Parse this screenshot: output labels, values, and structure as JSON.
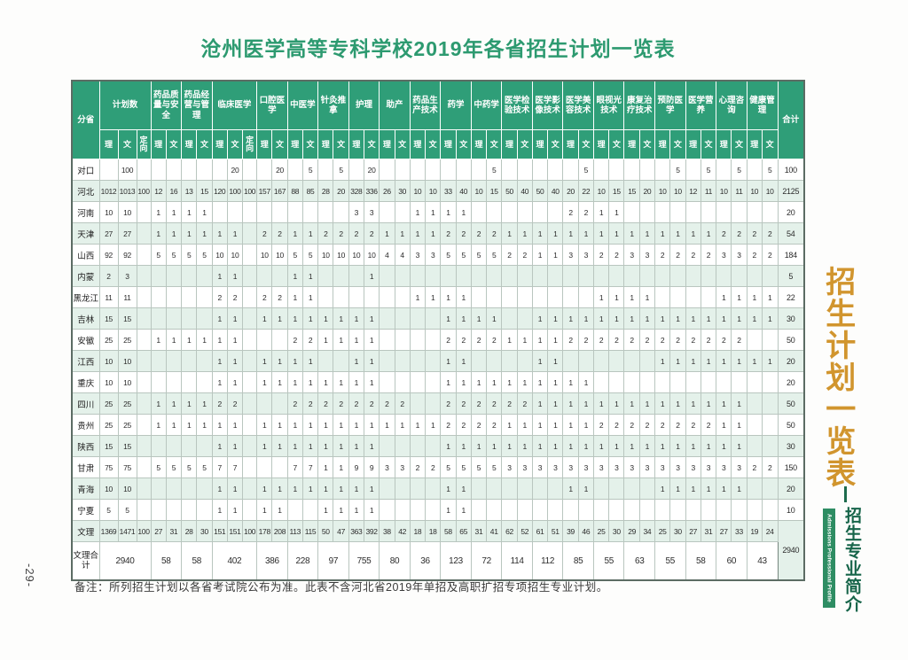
{
  "page": {
    "number": "-29-"
  },
  "title": "沧州医学高等专科学校2019年各省招生计划一览表",
  "note": "备注：所列招生计划以各省考试院公布为准。此表不含河北省2019年单招及高职扩招专项招生专业计划。",
  "sidebar": {
    "calligraphy": "招生计划一览表",
    "section_label": "招生专业简介",
    "section_label_en": "Admissions Professional Profile"
  },
  "colors": {
    "header_green": "#2f9e78",
    "row_tint": "#e4f1ea",
    "title_green": "#2d9a70",
    "calligraphy_orange": "#d1952e",
    "side_dark_green": "#17654a",
    "badge_green": "#2e8d63"
  },
  "table": {
    "corner_label": "分省",
    "total_label": "合计",
    "grand_row_label": "文理",
    "grand_total": "2940",
    "groups": [
      {
        "name": "计划数",
        "cols": [
          "理",
          "文",
          "定向"
        ]
      },
      {
        "name": "药品质量与安全",
        "cols": [
          "理",
          "文"
        ]
      },
      {
        "name": "药品经营与管理",
        "cols": [
          "理",
          "文"
        ]
      },
      {
        "name": "临床医学",
        "cols": [
          "理",
          "文",
          "定向"
        ]
      },
      {
        "name": "口腔医学",
        "cols": [
          "理",
          "文"
        ]
      },
      {
        "name": "中医学",
        "cols": [
          "理",
          "文"
        ]
      },
      {
        "name": "针灸推拿",
        "cols": [
          "理",
          "文"
        ]
      },
      {
        "name": "护理",
        "cols": [
          "理",
          "文"
        ]
      },
      {
        "name": "助产",
        "cols": [
          "理",
          "文"
        ]
      },
      {
        "name": "药品生产技术",
        "cols": [
          "理",
          "文"
        ]
      },
      {
        "name": "药学",
        "cols": [
          "理",
          "文"
        ]
      },
      {
        "name": "中药学",
        "cols": [
          "理",
          "文"
        ]
      },
      {
        "name": "医学检验技术",
        "cols": [
          "理",
          "文"
        ]
      },
      {
        "name": "医学影像技术",
        "cols": [
          "理",
          "文"
        ]
      },
      {
        "name": "医学美容技术",
        "cols": [
          "理",
          "文"
        ]
      },
      {
        "name": "眼视光技术",
        "cols": [
          "理",
          "文"
        ]
      },
      {
        "name": "康复治疗技术",
        "cols": [
          "理",
          "文"
        ]
      },
      {
        "name": "预防医学",
        "cols": [
          "理",
          "文"
        ]
      },
      {
        "name": "医学营养",
        "cols": [
          "理",
          "文"
        ]
      },
      {
        "name": "心理咨询",
        "cols": [
          "理",
          "文"
        ]
      },
      {
        "name": "健康管理",
        "cols": [
          "理",
          "文"
        ]
      }
    ],
    "rows": [
      {
        "label": "对口",
        "cells": [
          "",
          "100",
          "",
          "",
          "",
          "",
          "",
          "",
          "20",
          "",
          "",
          "20",
          "",
          "5",
          "",
          "5",
          "",
          "20",
          "",
          "",
          "",
          "",
          "",
          "",
          "",
          "5",
          "",
          "",
          "",
          "",
          "",
          "5",
          "",
          "",
          "",
          "",
          "",
          "5",
          "",
          "5",
          "",
          "5",
          "",
          "5"
        ],
        "total": "100"
      },
      {
        "label": "河北",
        "cells": [
          "1012",
          "1013",
          "100",
          "12",
          "16",
          "13",
          "15",
          "120",
          "100",
          "100",
          "157",
          "167",
          "88",
          "85",
          "28",
          "20",
          "328",
          "336",
          "26",
          "30",
          "10",
          "10",
          "33",
          "40",
          "10",
          "15",
          "50",
          "40",
          "50",
          "40",
          "20",
          "22",
          "10",
          "15",
          "15",
          "20",
          "10",
          "10",
          "12",
          "11",
          "10",
          "11",
          "10",
          "10"
        ],
        "total": "2125"
      },
      {
        "label": "河南",
        "cells": [
          "10",
          "10",
          "",
          "1",
          "1",
          "1",
          "1",
          "",
          "",
          "",
          "",
          "",
          "",
          "",
          "",
          "",
          "3",
          "3",
          "",
          "",
          "1",
          "1",
          "1",
          "1",
          "",
          "",
          "",
          "",
          "",
          "",
          "2",
          "2",
          "1",
          "1",
          "",
          "",
          "",
          "",
          "",
          "",
          "",
          "",
          "",
          ""
        ],
        "total": "20"
      },
      {
        "label": "天津",
        "cells": [
          "27",
          "27",
          "",
          "1",
          "1",
          "1",
          "1",
          "1",
          "1",
          "",
          "2",
          "2",
          "1",
          "1",
          "2",
          "2",
          "2",
          "2",
          "1",
          "1",
          "1",
          "1",
          "2",
          "2",
          "2",
          "2",
          "1",
          "1",
          "1",
          "1",
          "1",
          "1",
          "1",
          "1",
          "1",
          "1",
          "1",
          "1",
          "1",
          "1",
          "2",
          "2",
          "2",
          "2"
        ],
        "total": "54"
      },
      {
        "label": "山西",
        "cells": [
          "92",
          "92",
          "",
          "5",
          "5",
          "5",
          "5",
          "10",
          "10",
          "",
          "10",
          "10",
          "5",
          "5",
          "10",
          "10",
          "10",
          "10",
          "4",
          "4",
          "3",
          "3",
          "5",
          "5",
          "5",
          "5",
          "2",
          "2",
          "1",
          "1",
          "3",
          "3",
          "2",
          "2",
          "3",
          "3",
          "2",
          "2",
          "2",
          "2",
          "3",
          "3",
          "2",
          "2"
        ],
        "total": "184"
      },
      {
        "label": "内蒙",
        "cells": [
          "2",
          "3",
          "",
          "",
          "",
          "",
          "",
          "1",
          "1",
          "",
          "",
          "",
          "1",
          "1",
          "",
          "",
          "",
          "1",
          "",
          "",
          "",
          "",
          "",
          "",
          "",
          "",
          "",
          "",
          "",
          "",
          "",
          "",
          "",
          "",
          "",
          "",
          "",
          "",
          "",
          "",
          "",
          "",
          "",
          ""
        ],
        "total": "5"
      },
      {
        "label": "黑龙江",
        "cells": [
          "11",
          "11",
          "",
          "",
          "",
          "",
          "",
          "2",
          "2",
          "",
          "2",
          "2",
          "1",
          "1",
          "",
          "",
          "",
          "",
          "",
          "",
          "1",
          "1",
          "1",
          "1",
          "",
          "",
          "",
          "",
          "",
          "",
          "",
          "",
          "1",
          "1",
          "1",
          "1",
          "",
          "",
          "",
          "",
          "1",
          "1",
          "1",
          "1"
        ],
        "total": "22"
      },
      {
        "label": "吉林",
        "cells": [
          "15",
          "15",
          "",
          "",
          "",
          "",
          "",
          "1",
          "1",
          "",
          "1",
          "1",
          "1",
          "1",
          "1",
          "1",
          "1",
          "1",
          "",
          "",
          "",
          "",
          "1",
          "1",
          "1",
          "1",
          "",
          "",
          "1",
          "1",
          "1",
          "1",
          "1",
          "1",
          "1",
          "1",
          "1",
          "1",
          "1",
          "1",
          "1",
          "1",
          "1",
          "1"
        ],
        "total": "30"
      },
      {
        "label": "安徽",
        "cells": [
          "25",
          "25",
          "",
          "1",
          "1",
          "1",
          "1",
          "1",
          "1",
          "",
          "",
          "",
          "2",
          "2",
          "1",
          "1",
          "1",
          "1",
          "",
          "",
          "",
          "",
          "2",
          "2",
          "2",
          "2",
          "1",
          "1",
          "1",
          "1",
          "2",
          "2",
          "2",
          "2",
          "2",
          "2",
          "2",
          "2",
          "2",
          "2",
          "2",
          "2",
          "",
          ""
        ],
        "total": "50"
      },
      {
        "label": "江西",
        "cells": [
          "10",
          "10",
          "",
          "",
          "",
          "",
          "",
          "1",
          "1",
          "",
          "1",
          "1",
          "1",
          "1",
          "",
          "",
          "1",
          "1",
          "",
          "",
          "",
          "",
          "1",
          "1",
          "",
          "",
          "",
          "",
          "1",
          "1",
          "",
          "",
          "",
          "",
          "",
          "",
          "1",
          "1",
          "1",
          "1",
          "1",
          "1",
          "1",
          "1"
        ],
        "total": "20"
      },
      {
        "label": "重庆",
        "cells": [
          "10",
          "10",
          "",
          "",
          "",
          "",
          "",
          "1",
          "1",
          "",
          "1",
          "1",
          "1",
          "1",
          "1",
          "1",
          "1",
          "1",
          "",
          "",
          "",
          "",
          "1",
          "1",
          "1",
          "1",
          "1",
          "1",
          "1",
          "1",
          "1",
          "1",
          "",
          "",
          "",
          "",
          "",
          "",
          "",
          "",
          "",
          "",
          "",
          ""
        ],
        "total": "20"
      },
      {
        "label": "四川",
        "cells": [
          "25",
          "25",
          "",
          "1",
          "1",
          "1",
          "1",
          "2",
          "2",
          "",
          "",
          "",
          "2",
          "2",
          "2",
          "2",
          "2",
          "2",
          "2",
          "2",
          "",
          "",
          "2",
          "2",
          "2",
          "2",
          "2",
          "2",
          "1",
          "1",
          "1",
          "1",
          "1",
          "1",
          "1",
          "1",
          "1",
          "1",
          "1",
          "1",
          "1",
          "1",
          "",
          ""
        ],
        "total": "50"
      },
      {
        "label": "贵州",
        "cells": [
          "25",
          "25",
          "",
          "1",
          "1",
          "1",
          "1",
          "1",
          "1",
          "",
          "1",
          "1",
          "1",
          "1",
          "1",
          "1",
          "1",
          "1",
          "1",
          "1",
          "1",
          "1",
          "2",
          "2",
          "2",
          "2",
          "1",
          "1",
          "1",
          "1",
          "1",
          "1",
          "2",
          "2",
          "2",
          "2",
          "2",
          "2",
          "2",
          "2",
          "1",
          "1",
          "",
          ""
        ],
        "total": "50"
      },
      {
        "label": "陕西",
        "cells": [
          "15",
          "15",
          "",
          "",
          "",
          "",
          "",
          "1",
          "1",
          "",
          "1",
          "1",
          "1",
          "1",
          "1",
          "1",
          "1",
          "1",
          "",
          "",
          "",
          "",
          "1",
          "1",
          "1",
          "1",
          "1",
          "1",
          "1",
          "1",
          "1",
          "1",
          "1",
          "1",
          "1",
          "1",
          "1",
          "1",
          "1",
          "1",
          "1",
          "1",
          "",
          ""
        ],
        "total": "30"
      },
      {
        "label": "甘肃",
        "cells": [
          "75",
          "75",
          "",
          "5",
          "5",
          "5",
          "5",
          "7",
          "7",
          "",
          "",
          "",
          "7",
          "7",
          "1",
          "1",
          "9",
          "9",
          "3",
          "3",
          "2",
          "2",
          "5",
          "5",
          "5",
          "5",
          "3",
          "3",
          "3",
          "3",
          "3",
          "3",
          "3",
          "3",
          "3",
          "3",
          "3",
          "3",
          "3",
          "3",
          "3",
          "3",
          "2",
          "2"
        ],
        "total": "150"
      },
      {
        "label": "青海",
        "cells": [
          "10",
          "10",
          "",
          "",
          "",
          "",
          "",
          "1",
          "1",
          "",
          "1",
          "1",
          "1",
          "1",
          "1",
          "1",
          "1",
          "1",
          "",
          "",
          "",
          "",
          "1",
          "1",
          "",
          "",
          "",
          "",
          "",
          "",
          "1",
          "1",
          "",
          "",
          "",
          "",
          "1",
          "1",
          "1",
          "1",
          "1",
          "1",
          "",
          ""
        ],
        "total": "20"
      },
      {
        "label": "宁夏",
        "cells": [
          "5",
          "5",
          "",
          "",
          "",
          "",
          "",
          "1",
          "1",
          "",
          "1",
          "1",
          "",
          "",
          "1",
          "1",
          "1",
          "1",
          "",
          "",
          "",
          "",
          "1",
          "1",
          "",
          "",
          "",
          "",
          "",
          "",
          "",
          "",
          "",
          "",
          "",
          "",
          "",
          "",
          "",
          "",
          "",
          "",
          "",
          ""
        ],
        "total": "10"
      },
      {
        "label": "文理",
        "cells": [
          "1369",
          "1471",
          "100",
          "27",
          "31",
          "28",
          "30",
          "151",
          "151",
          "100",
          "178",
          "208",
          "113",
          "115",
          "50",
          "47",
          "363",
          "392",
          "38",
          "42",
          "18",
          "18",
          "58",
          "65",
          "31",
          "41",
          "62",
          "52",
          "61",
          "51",
          "39",
          "46",
          "25",
          "30",
          "29",
          "34",
          "25",
          "30",
          "27",
          "31",
          "27",
          "33",
          "19",
          "24"
        ],
        "total": ""
      }
    ],
    "summary": {
      "label": "文理合计",
      "values": [
        "2940",
        "58",
        "58",
        "402",
        "386",
        "228",
        "97",
        "755",
        "80",
        "36",
        "123",
        "72",
        "114",
        "112",
        "85",
        "55",
        "63",
        "55",
        "58",
        "60",
        "43"
      ]
    }
  }
}
